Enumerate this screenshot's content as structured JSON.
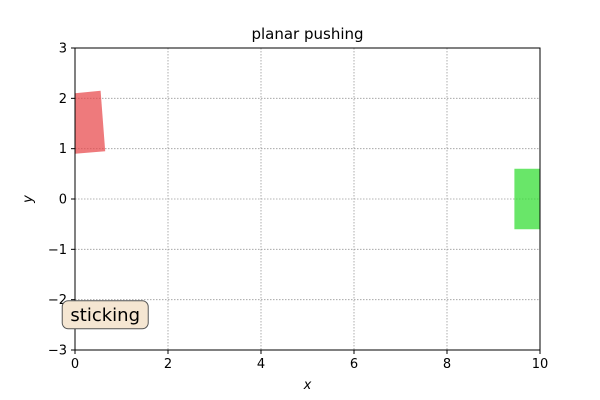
{
  "chart_data": {
    "type": "scatter",
    "title": "planar pushing",
    "xlabel": "x",
    "ylabel": "y",
    "xlim": [
      0,
      10
    ],
    "ylim": [
      -3,
      3
    ],
    "xticks": [
      0,
      2,
      4,
      6,
      8,
      10
    ],
    "yticks": [
      -3,
      -2,
      -1,
      0,
      1,
      2,
      3
    ],
    "x_tick_labels": [
      "0",
      "2",
      "4",
      "6",
      "8",
      "10"
    ],
    "y_tick_labels": [
      "−3",
      "−2",
      "−1",
      "0",
      "1",
      "2",
      "3"
    ],
    "grid": true,
    "objects": [
      {
        "shape": "rectangle",
        "color": "#e8474a",
        "corners": [
          [
            0.0,
            0.9
          ],
          [
            0.65,
            0.95
          ],
          [
            0.55,
            2.15
          ],
          [
            0.0,
            2.1
          ]
        ]
      },
      {
        "shape": "rectangle",
        "color": "#2fdc2f",
        "corners": [
          [
            9.45,
            -0.6
          ],
          [
            10.0,
            -0.6
          ],
          [
            10.0,
            0.6
          ],
          [
            9.45,
            0.6
          ]
        ]
      }
    ],
    "annotation": {
      "text": "sticking",
      "x": 0.65,
      "y": -2.3,
      "box_color": "#f5e6d2"
    }
  }
}
